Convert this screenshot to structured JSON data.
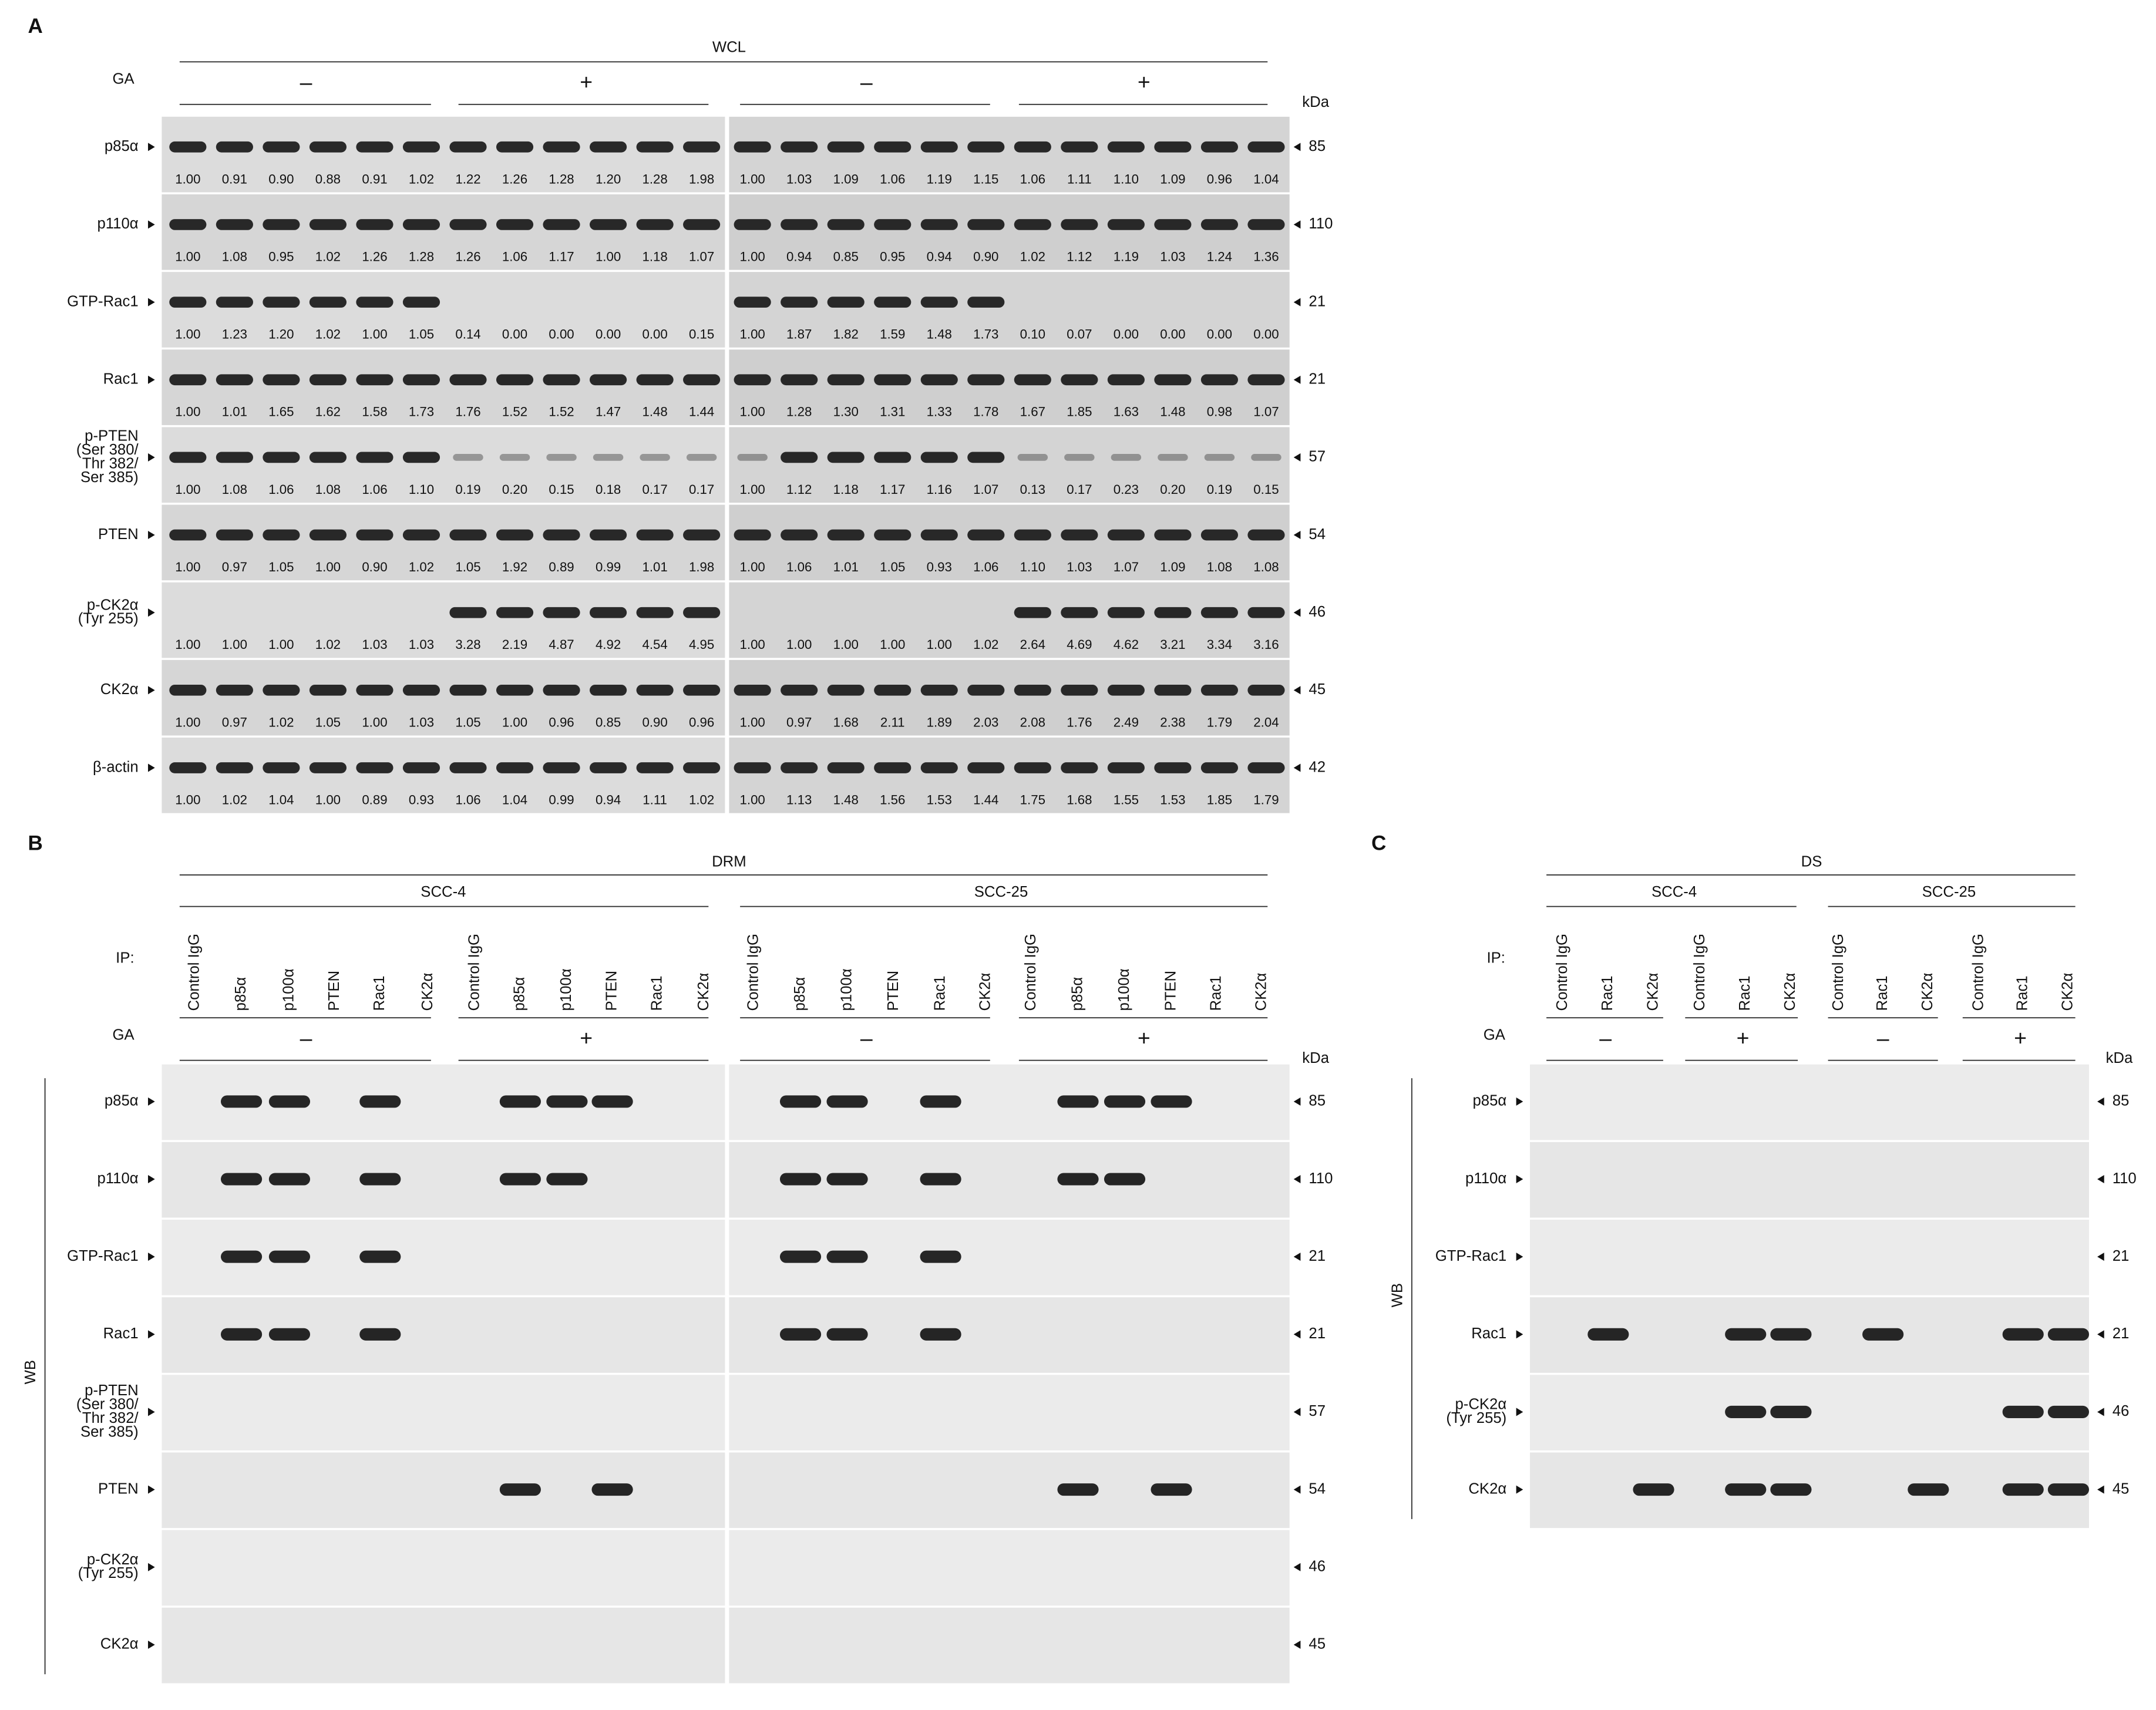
{
  "panel_a": {
    "label": "A",
    "header": "WCL",
    "ga_label": "GA",
    "ga_signs": [
      "–",
      "+",
      "–",
      "+"
    ],
    "kda_unit": "kDa",
    "rows": [
      {
        "name": [
          "p85α"
        ],
        "kda": 85,
        "values": [
          "1.00",
          "0.91",
          "0.90",
          "0.88",
          "0.91",
          "1.02",
          "1.22",
          "1.26",
          "1.28",
          "1.20",
          "1.28",
          "1.98",
          "1.00",
          "1.03",
          "1.09",
          "1.06",
          "1.19",
          "1.15",
          "1.06",
          "1.11",
          "1.10",
          "1.09",
          "0.96",
          "1.04"
        ]
      },
      {
        "name": [
          "p110α"
        ],
        "kda": 110,
        "values": [
          "1.00",
          "1.08",
          "0.95",
          "1.02",
          "1.26",
          "1.28",
          "1.26",
          "1.06",
          "1.17",
          "1.00",
          "1.18",
          "1.07",
          "1.00",
          "0.94",
          "0.85",
          "0.95",
          "0.94",
          "0.90",
          "1.02",
          "1.12",
          "1.19",
          "1.03",
          "1.24",
          "1.36"
        ]
      },
      {
        "name": [
          "GTP-Rac1"
        ],
        "kda": 21,
        "values": [
          "1.00",
          "1.23",
          "1.20",
          "1.02",
          "1.00",
          "1.05",
          "0.14",
          "0.00",
          "0.00",
          "0.00",
          "0.00",
          "0.15",
          "1.00",
          "1.87",
          "1.82",
          "1.59",
          "1.48",
          "1.73",
          "0.10",
          "0.07",
          "0.00",
          "0.00",
          "0.00",
          "0.00"
        ]
      },
      {
        "name": [
          "Rac1"
        ],
        "kda": 21,
        "values": [
          "1.00",
          "1.01",
          "1.65",
          "1.62",
          "1.58",
          "1.73",
          "1.76",
          "1.52",
          "1.52",
          "1.47",
          "1.48",
          "1.44",
          "1.00",
          "1.28",
          "1.30",
          "1.31",
          "1.33",
          "1.78",
          "1.67",
          "1.85",
          "1.63",
          "1.48",
          "0.98",
          "1.07"
        ]
      },
      {
        "name": [
          "p-PTEN",
          "(Ser 380/",
          "Thr 382/",
          "Ser 385)"
        ],
        "kda": 57,
        "values": [
          "1.00",
          "1.08",
          "1.06",
          "1.08",
          "1.06",
          "1.10",
          "0.19",
          "0.20",
          "0.15",
          "0.18",
          "0.17",
          "0.17",
          "1.00",
          "1.12",
          "1.18",
          "1.17",
          "1.16",
          "1.07",
          "0.13",
          "0.17",
          "0.23",
          "0.20",
          "0.19",
          "0.15"
        ]
      },
      {
        "name": [
          "PTEN"
        ],
        "kda": 54,
        "values": [
          "1.00",
          "0.97",
          "1.05",
          "1.00",
          "0.90",
          "1.02",
          "1.05",
          "1.92",
          "0.89",
          "0.99",
          "1.01",
          "1.98",
          "1.00",
          "1.06",
          "1.01",
          "1.05",
          "0.93",
          "1.06",
          "1.10",
          "1.03",
          "1.07",
          "1.09",
          "1.08",
          "1.08"
        ]
      },
      {
        "name": [
          "p-CK2α",
          "(Tyr 255)"
        ],
        "kda": 46,
        "values": [
          "1.00",
          "1.00",
          "1.00",
          "1.02",
          "1.03",
          "1.03",
          "3.28",
          "2.19",
          "4.87",
          "4.92",
          "4.54",
          "4.95",
          "1.00",
          "1.00",
          "1.00",
          "1.00",
          "1.00",
          "1.02",
          "2.64",
          "4.69",
          "4.62",
          "3.21",
          "3.34",
          "3.16"
        ]
      },
      {
        "name": [
          "CK2α"
        ],
        "kda": 45,
        "values": [
          "1.00",
          "0.97",
          "1.02",
          "1.05",
          "1.00",
          "1.03",
          "1.05",
          "1.00",
          "0.96",
          "0.85",
          "0.90",
          "0.96",
          "1.00",
          "0.97",
          "1.68",
          "2.11",
          "1.89",
          "2.03",
          "2.08",
          "1.76",
          "2.49",
          "2.38",
          "1.79",
          "2.04"
        ]
      },
      {
        "name": [
          "β-actin"
        ],
        "kda": 42,
        "values": [
          "1.00",
          "1.02",
          "1.04",
          "1.00",
          "0.89",
          "0.93",
          "1.06",
          "1.04",
          "0.99",
          "0.94",
          "1.11",
          "1.02",
          "1.00",
          "1.13",
          "1.48",
          "1.56",
          "1.53",
          "1.44",
          "1.75",
          "1.68",
          "1.55",
          "1.53",
          "1.85",
          "1.79"
        ]
      }
    ]
  },
  "panel_b": {
    "label": "B",
    "header": "DRM",
    "cell_lines": [
      "SCC-4",
      "SCC-25"
    ],
    "ip_label": "IP:",
    "ip_lanes": [
      "Control IgG",
      "p85α",
      "p100α",
      "PTEN",
      "Rac1",
      "CK2α",
      "Control IgG",
      "p85α",
      "p100α",
      "PTEN",
      "Rac1",
      "CK2α",
      "Control IgG",
      "p85α",
      "p100α",
      "PTEN",
      "Rac1",
      "CK2α",
      "Control IgG",
      "p85α",
      "p100α",
      "PTEN",
      "Rac1",
      "CK2α"
    ],
    "ga_label": "GA",
    "ga_signs": [
      "–",
      "+",
      "–",
      "+"
    ],
    "kda_unit": "kDa",
    "wb_label": "WB",
    "rows": [
      {
        "name": [
          "p85α"
        ],
        "kda": 85
      },
      {
        "name": [
          "p110α"
        ],
        "kda": 110
      },
      {
        "name": [
          "GTP-Rac1"
        ],
        "kda": 21
      },
      {
        "name": [
          "Rac1"
        ],
        "kda": 21
      },
      {
        "name": [
          "p-PTEN",
          "(Ser 380/",
          "Thr 382/",
          "Ser 385)"
        ],
        "kda": 57
      },
      {
        "name": [
          "PTEN"
        ],
        "kda": 54
      },
      {
        "name": [
          "p-CK2α",
          "(Tyr 255)"
        ],
        "kda": 46
      },
      {
        "name": [
          "CK2α"
        ],
        "kda": 45
      }
    ]
  },
  "panel_c": {
    "label": "C",
    "header": "DS",
    "cell_lines": [
      "SCC-4",
      "SCC-25"
    ],
    "ip_label": "IP:",
    "ip_lanes": [
      "Control IgG",
      "Rac1",
      "CK2α",
      "Control IgG",
      "Rac1",
      "CK2α",
      "Control IgG",
      "Rac1",
      "CK2α",
      "Control IgG",
      "Rac1",
      "CK2α"
    ],
    "ga_label": "GA",
    "ga_signs": [
      "–",
      "+",
      "–",
      "+"
    ],
    "kda_unit": "kDa",
    "wb_label": "WB",
    "rows": [
      {
        "name": [
          "p85α"
        ],
        "kda": 85
      },
      {
        "name": [
          "p110α"
        ],
        "kda": 110
      },
      {
        "name": [
          "GTP-Rac1"
        ],
        "kda": 21
      },
      {
        "name": [
          "Rac1"
        ],
        "kda": 21
      },
      {
        "name": [
          "p-CK2α",
          "(Tyr 255)"
        ],
        "kda": 46
      },
      {
        "name": [
          "CK2α"
        ],
        "kda": 45
      }
    ]
  }
}
